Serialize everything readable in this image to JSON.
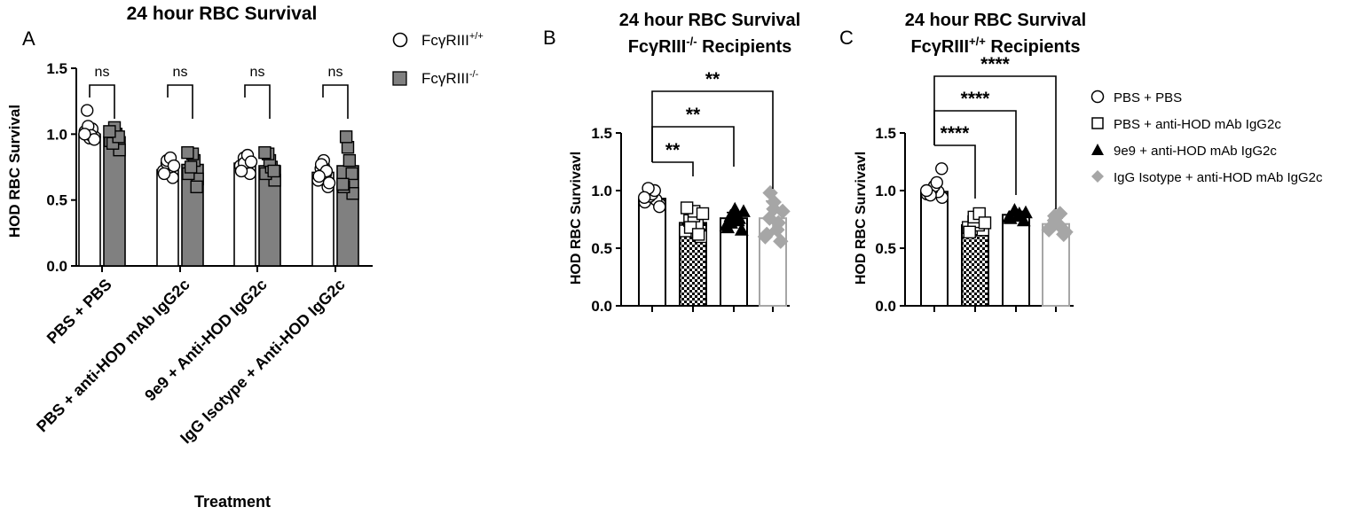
{
  "panels": {
    "a": {
      "letter": "A",
      "title": "24 hour RBC Survival",
      "ylabel": "HOD RBC Survival",
      "xlabel": "Treatment",
      "ylim": [
        0,
        1.5
      ],
      "yticks": [
        "0.0",
        "0.5",
        "1.0",
        "1.5"
      ],
      "legend": [
        {
          "base": "FcγRIII",
          "sup": "+/+"
        },
        {
          "base": "FcγRIII",
          "sup": "-/-"
        }
      ]
    },
    "b": {
      "letter": "B",
      "title_line1": "24 hour RBC Survival",
      "title_line2_base": "FcγRIII",
      "title_line2_sup": "-/-",
      "title_line2_rest": " Recipients",
      "ylabel": "HOD RBC Survivavl",
      "ylim": [
        0,
        1.5
      ],
      "yticks": [
        "0.0",
        "0.5",
        "1.0",
        "1.5"
      ]
    },
    "c": {
      "letter": "C",
      "title_line1": "24 hour RBC Survival",
      "title_line2_base": "FcγRIII",
      "title_line2_sup": "+/+",
      "title_line2_rest": " Recipients",
      "ylabel": "HOD RBC Survivavl",
      "ylim": [
        0,
        1.5
      ],
      "yticks": [
        "0.0",
        "0.5",
        "1.0",
        "1.5"
      ],
      "legend": [
        "PBS + PBS",
        "PBS + anti-HOD mAb IgG2c",
        "9e9 + anti-HOD mAb IgG2c",
        "IgG Isotype + anti-HOD mAb IgG2c"
      ]
    }
  },
  "colors": {
    "black": "#000000",
    "dark_gray": "#808080",
    "light_gray": "#a6a6a6",
    "white": "#ffffff"
  },
  "chart_data": [
    {
      "panel": "A",
      "type": "bar",
      "title": "24 hour RBC Survival",
      "xlabel": "Treatment",
      "ylabel": "HOD RBC Survival",
      "ylim": [
        0,
        1.5
      ],
      "categories": [
        "PBS + PBS",
        "PBS + anti-HOD mAb IgG2c",
        "9e9 + Anti-HOD IgG2c",
        "IgG Isotype + Anti-HOD IgG2c"
      ],
      "series": [
        {
          "name": "FcγRIII+/+",
          "values": [
            1.0,
            0.73,
            0.78,
            0.71
          ],
          "points": [
            [
              0.98,
              1.02,
              1.04,
              1.06,
              0.97,
              0.99,
              1.18,
              0.96,
              1.0
            ],
            [
              0.67,
              0.72,
              0.75,
              0.78,
              0.8,
              0.82,
              0.7,
              0.76
            ],
            [
              0.7,
              0.76,
              0.8,
              0.82,
              0.78,
              0.84,
              0.72,
              0.79
            ],
            [
              0.6,
              0.65,
              0.7,
              0.74,
              0.76,
              0.8,
              0.77,
              0.72,
              0.68,
              0.63
            ]
          ]
        },
        {
          "name": "FcγRIII-/-",
          "values": [
            0.98,
            0.77,
            0.76,
            0.76
          ],
          "points": [
            [
              0.88,
              0.95,
              1.0,
              1.05,
              0.93,
              0.98,
              1.02
            ],
            [
              0.66,
              0.7,
              0.8,
              0.85,
              0.75,
              0.6,
              0.86
            ],
            [
              0.65,
              0.7,
              0.75,
              0.8,
              0.85,
              0.72,
              0.86
            ],
            [
              0.55,
              0.6,
              0.8,
              0.9,
              0.98,
              0.7,
              0.62
            ]
          ]
        }
      ],
      "significance": [
        "ns",
        "ns",
        "ns",
        "ns"
      ],
      "legend_position": "top-right"
    },
    {
      "panel": "B",
      "type": "bar",
      "title": "24 hour RBC Survival FcγRIII-/- Recipients",
      "ylabel": "HOD RBC Survivavl",
      "ylim": [
        0,
        1.5
      ],
      "categories": [
        "PBS + PBS",
        "PBS + anti-HOD mAb IgG2c",
        "9e9 + anti-HOD mAb IgG2c",
        "IgG Isotype + anti-HOD mAb IgG2c"
      ],
      "values": [
        0.93,
        0.72,
        0.76,
        0.76
      ],
      "errors": [
        0.04,
        0.07,
        0.05,
        0.15
      ],
      "points": [
        [
          0.88,
          0.9,
          0.92,
          0.95,
          0.97,
          1.0,
          1.02,
          0.86,
          0.94
        ],
        [
          0.6,
          0.65,
          0.7,
          0.74,
          0.78,
          0.82,
          0.68,
          0.62,
          0.85,
          0.8
        ],
        [
          0.66,
          0.7,
          0.74,
          0.78,
          0.8,
          0.84,
          0.72,
          0.76,
          0.68,
          0.82
        ],
        [
          0.56,
          0.6,
          0.66,
          0.76,
          0.84,
          0.9,
          0.98,
          0.72,
          0.62,
          0.82
        ]
      ],
      "significance": [
        {
          "from": 0,
          "to": 1,
          "label": "**"
        },
        {
          "from": 0,
          "to": 2,
          "label": "**"
        },
        {
          "from": 0,
          "to": 3,
          "label": "**"
        }
      ]
    },
    {
      "panel": "C",
      "type": "bar",
      "title": "24 hour RBC Survival FcγRIII+/+ Recipients",
      "ylabel": "HOD RBC Survivavl",
      "ylim": [
        0,
        1.5
      ],
      "categories": [
        "PBS + PBS",
        "PBS + anti-HOD mAb IgG2c",
        "9e9 + anti-HOD mAb IgG2c",
        "IgG Isotype + anti-HOD mAb IgG2c"
      ],
      "values": [
        0.99,
        0.7,
        0.79,
        0.71
      ],
      "errors": [
        0.04,
        0.04,
        0.03,
        0.05
      ],
      "points": [
        [
          0.94,
          0.97,
          0.99,
          1.01,
          1.04,
          1.07,
          0.96,
          1.19,
          1.0
        ],
        [
          0.66,
          0.68,
          0.7,
          0.73,
          0.77,
          0.8,
          0.64,
          0.72
        ],
        [
          0.74,
          0.77,
          0.8,
          0.83,
          0.82,
          0.78,
          0.76,
          0.81
        ],
        [
          0.62,
          0.66,
          0.7,
          0.74,
          0.78,
          0.8,
          0.68,
          0.64
        ]
      ],
      "significance": [
        {
          "from": 0,
          "to": 1,
          "label": "****"
        },
        {
          "from": 0,
          "to": 2,
          "label": "****"
        },
        {
          "from": 0,
          "to": 3,
          "label": "****"
        }
      ],
      "legend_position": "right"
    }
  ]
}
